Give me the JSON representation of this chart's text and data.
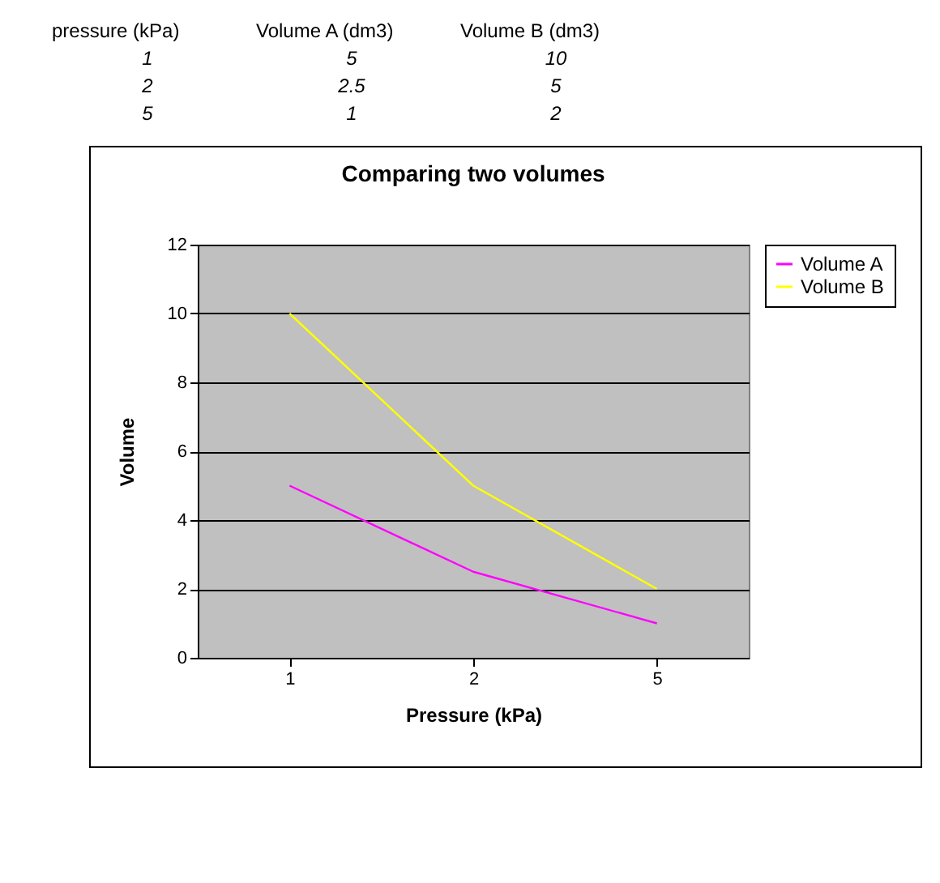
{
  "chart_data": {
    "type": "line",
    "title": "Comparing two volumes",
    "xlabel": "Pressure (kPa)",
    "ylabel": "Volume",
    "categories": [
      "1",
      "2",
      "5"
    ],
    "series": [
      {
        "name": "Volume A",
        "color": "#ff00ff",
        "values": [
          5,
          2.5,
          1
        ]
      },
      {
        "name": "Volume B",
        "color": "#ffff00",
        "values": [
          10,
          5,
          2
        ]
      }
    ],
    "ylim": [
      0,
      12
    ],
    "yticks": [
      0,
      2,
      4,
      6,
      8,
      10,
      12
    ],
    "grid": "y",
    "legend": "right",
    "marker": "none",
    "annotations": [
      "pressure (kPa)",
      "Volume A (dm3)",
      "Volume B (dm3)",
      "1",
      "5",
      "10",
      "2",
      "2.5",
      "5",
      "5",
      "1",
      "2"
    ]
  }
}
